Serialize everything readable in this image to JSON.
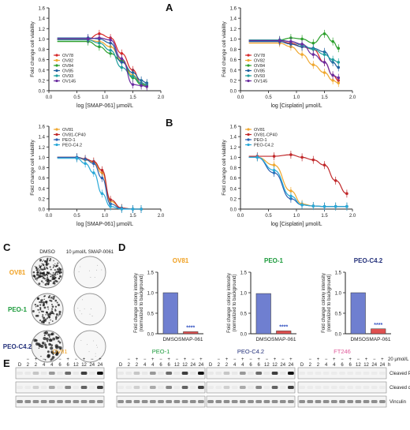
{
  "panels": {
    "A": "A",
    "B": "B",
    "C": "C",
    "D": "D",
    "E": "E"
  },
  "colors": {
    "OV78": "#d62728",
    "OV82": "#f0a830",
    "OV84": "#2ca02c",
    "OV85": "#1f5f9f",
    "OV93": "#1f9e9e",
    "OV145": "#6a2ca0",
    "OV81": "#f0a830",
    "OV81-CP40": "#c0282a",
    "PEO-1": "#2a5fb0",
    "PEO-C4.2": "#29a9d8",
    "bar": "#6f7fd0",
    "bar_small": "#e05050",
    "star": "#3050c0",
    "OV81_title": "#f0a020",
    "PEO1_title": "#1a9a3a",
    "PEOC42_title": "#23307a",
    "FT246_title": "#e05a9a"
  },
  "chart_data": [
    {
      "id": "A-left",
      "type": "line",
      "xlabel": "log [SMAP-061] μmol/L",
      "ylabel": "Fold change cell viability",
      "xlim": [
        0,
        2.0
      ],
      "ylim": [
        0,
        1.6
      ],
      "xticks": [
        "0.0",
        "0.5",
        "1.0",
        "1.5",
        "2.0"
      ],
      "yticks": [
        "0.0",
        "0.2",
        "0.4",
        "0.6",
        "0.8",
        "1.0",
        "1.2",
        "1.4",
        "1.6"
      ],
      "series": [
        {
          "name": "OV78",
          "x": [
            0.7,
            0.9,
            1.1,
            1.3,
            1.5,
            1.65,
            1.75
          ],
          "y": [
            1.0,
            1.1,
            1.02,
            0.72,
            0.4,
            0.14,
            0.12
          ]
        },
        {
          "name": "OV82",
          "x": [
            0.7,
            0.9,
            1.1,
            1.3,
            1.5,
            1.65,
            1.75
          ],
          "y": [
            0.98,
            0.95,
            0.85,
            0.6,
            0.3,
            0.15,
            0.12
          ]
        },
        {
          "name": "OV84",
          "x": [
            0.7,
            0.9,
            1.1,
            1.3,
            1.5,
            1.65,
            1.75
          ],
          "y": [
            0.95,
            0.85,
            0.72,
            0.58,
            0.25,
            0.12,
            0.1
          ]
        },
        {
          "name": "OV85",
          "x": [
            0.7,
            0.9,
            1.1,
            1.3,
            1.5,
            1.65,
            1.75
          ],
          "y": [
            1.02,
            1.0,
            0.92,
            0.55,
            0.35,
            0.2,
            0.15
          ]
        },
        {
          "name": "OV93",
          "x": [
            0.7,
            0.9,
            1.1,
            1.3,
            1.5,
            1.65,
            1.75
          ],
          "y": [
            0.98,
            0.92,
            0.78,
            0.45,
            0.28,
            0.15,
            0.12
          ]
        },
        {
          "name": "OV145",
          "x": [
            0.7,
            0.9,
            1.1,
            1.3,
            1.5,
            1.65,
            1.75
          ],
          "y": [
            1.0,
            1.02,
            0.98,
            0.62,
            0.12,
            0.1,
            0.08
          ]
        }
      ],
      "legend": "bottom-left"
    },
    {
      "id": "A-right",
      "type": "line",
      "xlabel": "log [Cisplatin] μmol/L",
      "ylabel": "Fold change cell viability",
      "xlim": [
        0,
        2.0
      ],
      "ylim": [
        0,
        1.6
      ],
      "xticks": [
        "0.0",
        "0.5",
        "1.0",
        "1.5",
        "2.0"
      ],
      "yticks": [
        "0.0",
        "0.2",
        "0.4",
        "0.6",
        "0.8",
        "1.0",
        "1.2",
        "1.4",
        "1.6"
      ],
      "series": [
        {
          "name": "OV78",
          "x": [
            0.7,
            0.9,
            1.1,
            1.3,
            1.5,
            1.65,
            1.75
          ],
          "y": [
            0.95,
            0.92,
            0.85,
            0.8,
            0.55,
            0.3,
            0.2
          ]
        },
        {
          "name": "OV82",
          "x": [
            0.7,
            0.9,
            1.1,
            1.3,
            1.5,
            1.65,
            1.75
          ],
          "y": [
            0.92,
            0.85,
            0.7,
            0.5,
            0.35,
            0.2,
            0.15
          ]
        },
        {
          "name": "OV84",
          "x": [
            0.7,
            0.9,
            1.1,
            1.3,
            1.5,
            1.65,
            1.75
          ],
          "y": [
            0.98,
            1.02,
            1.0,
            0.92,
            1.1,
            0.95,
            0.82
          ]
        },
        {
          "name": "OV85",
          "x": [
            0.7,
            0.9,
            1.1,
            1.3,
            1.5,
            1.65,
            1.75
          ],
          "y": [
            0.95,
            0.9,
            0.85,
            0.82,
            0.75,
            0.55,
            0.45
          ]
        },
        {
          "name": "OV93",
          "x": [
            0.7,
            0.9,
            1.1,
            1.3,
            1.5,
            1.65,
            1.75
          ],
          "y": [
            0.98,
            0.95,
            0.88,
            0.8,
            0.7,
            0.6,
            0.55
          ]
        },
        {
          "name": "OV145",
          "x": [
            0.7,
            0.9,
            1.1,
            1.3,
            1.5,
            1.65,
            1.75
          ],
          "y": [
            0.97,
            0.95,
            0.9,
            0.7,
            0.55,
            0.3,
            0.25
          ]
        }
      ],
      "legend": "bottom-left"
    },
    {
      "id": "B-left",
      "type": "line",
      "xlabel": "log [SMAP-061] μmol/L",
      "ylabel": "Fold change cell viability",
      "xlim": [
        0,
        2.0
      ],
      "ylim": [
        0,
        1.6
      ],
      "xticks": [
        "0.0",
        "0.5",
        "1.0",
        "1.5",
        "2.0"
      ],
      "yticks": [
        "0.0",
        "0.2",
        "0.4",
        "0.6",
        "0.8",
        "1.0",
        "1.2",
        "1.4",
        "1.6"
      ],
      "series": [
        {
          "name": "OV81",
          "x": [
            0.5,
            0.65,
            0.8,
            0.95,
            1.1,
            1.3,
            1.5,
            1.65
          ],
          "y": [
            1.0,
            0.95,
            0.9,
            0.7,
            0.15,
            0.02,
            0.0,
            0.0
          ]
        },
        {
          "name": "OV81-CP40",
          "x": [
            0.5,
            0.65,
            0.8,
            0.95,
            1.1,
            1.3,
            1.5,
            1.65
          ],
          "y": [
            1.0,
            0.97,
            0.92,
            0.75,
            0.18,
            0.02,
            0.0,
            0.0
          ]
        },
        {
          "name": "PEO-1",
          "x": [
            0.5,
            0.65,
            0.8,
            0.95,
            1.1,
            1.3,
            1.5,
            1.65
          ],
          "y": [
            1.0,
            0.96,
            0.88,
            0.6,
            0.1,
            0.01,
            0.0,
            0.0
          ]
        },
        {
          "name": "PEO-C4.2",
          "x": [
            0.5,
            0.65,
            0.8,
            0.95,
            1.1,
            1.3,
            1.5,
            1.65
          ],
          "y": [
            0.98,
            0.88,
            0.7,
            0.3,
            0.05,
            0.0,
            0.0,
            0.0
          ]
        }
      ],
      "legend": "top-left"
    },
    {
      "id": "B-right",
      "type": "line",
      "xlabel": "log [Cisplatin] μmol/L",
      "ylabel": "Fold change cell viability",
      "xlim": [
        0,
        2.0
      ],
      "ylim": [
        0,
        1.6
      ],
      "xticks": [
        "0.0",
        "0.5",
        "1.0",
        "1.5",
        "2.0"
      ],
      "yticks": [
        "0.0",
        "0.2",
        "0.4",
        "0.6",
        "0.8",
        "1.0",
        "1.2",
        "1.4",
        "1.6"
      ],
      "series": [
        {
          "name": "OV81",
          "x": [
            0.3,
            0.6,
            0.9,
            1.1,
            1.3,
            1.5,
            1.7,
            1.9
          ],
          "y": [
            1.0,
            0.85,
            0.35,
            0.1,
            0.06,
            0.05,
            0.05,
            0.05
          ]
        },
        {
          "name": "OV81-CP40",
          "x": [
            0.3,
            0.6,
            0.9,
            1.1,
            1.3,
            1.5,
            1.7,
            1.9
          ],
          "y": [
            1.02,
            1.02,
            1.05,
            1.0,
            0.95,
            0.85,
            0.55,
            0.3
          ]
        },
        {
          "name": "PEO-1",
          "x": [
            0.3,
            0.6,
            0.9,
            1.1,
            1.3,
            1.5,
            1.7,
            1.9
          ],
          "y": [
            1.0,
            0.7,
            0.2,
            0.08,
            0.06,
            0.05,
            0.05,
            0.05
          ]
        },
        {
          "name": "PEO-C4.2",
          "x": [
            0.3,
            0.6,
            0.9,
            1.1,
            1.3,
            1.5,
            1.7,
            1.9
          ],
          "y": [
            1.0,
            0.75,
            0.25,
            0.08,
            0.06,
            0.05,
            0.05,
            0.05
          ]
        }
      ],
      "legend": "top-left"
    },
    {
      "id": "D-OV81",
      "type": "bar",
      "title": "OV81",
      "ylabel": "Fold change colony intensity\n(normalized to background)",
      "categories": [
        "DMSO",
        "SMAP-061"
      ],
      "values": [
        1.0,
        0.05
      ],
      "ylim": [
        0,
        1.5
      ],
      "yticks": [
        "0.0",
        "0.5",
        "1.0",
        "1.5"
      ],
      "annotation": "****"
    },
    {
      "id": "D-PEO1",
      "type": "bar",
      "title": "PEO-1",
      "ylabel": "Fold change colony intensity\n(normalized to background)",
      "categories": [
        "DMSO",
        "SMAP-061"
      ],
      "values": [
        0.98,
        0.07
      ],
      "ylim": [
        0,
        1.5
      ],
      "yticks": [
        "0.0",
        "0.5",
        "1.0",
        "1.5"
      ],
      "annotation": "****"
    },
    {
      "id": "D-PEOC42",
      "type": "bar",
      "title": "PEO-C4.2",
      "ylabel": "Fold change colony intensity\n(normalized to background)",
      "categories": [
        "DMSO",
        "SMAP-061"
      ],
      "values": [
        1.0,
        0.12
      ],
      "ylim": [
        0,
        1.5
      ],
      "yticks": [
        "0.0",
        "0.5",
        "1.0",
        "1.5"
      ],
      "annotation": "****"
    }
  ],
  "panel_c": {
    "col_dmso": "DMSO",
    "col_drug": "10 μmol/L SMAP-0061",
    "rows": [
      {
        "label": "OV81",
        "color": "#f0a020"
      },
      {
        "label": "PEO-1",
        "color": "#1a9a3a"
      },
      {
        "label": "PEO-C4.2",
        "color": "#23307a"
      }
    ]
  },
  "panel_e": {
    "groups": [
      {
        "title": "OV81",
        "color": "#f0a020"
      },
      {
        "title": "PEO-1",
        "color": "#1a9a3a"
      },
      {
        "title": "PEO-C4.2",
        "color": "#23307a"
      },
      {
        "title": "FT246",
        "color": "#e05a9a"
      }
    ],
    "sign_row": [
      "−",
      "+",
      "−",
      "+",
      "−",
      "+",
      "−",
      "+",
      "−",
      "+"
    ],
    "time_row": [
      "D",
      "2",
      "2",
      "4",
      "4",
      "6",
      "6",
      "12",
      "12",
      "24",
      "24"
    ],
    "time_short": [
      "D",
      "2",
      "4",
      "6",
      "12",
      "24"
    ],
    "sign_label": "20 μmol/L SMAP-0061",
    "time_unit": "h",
    "blots": [
      "Cleaved Parp",
      "Cleaved caspase 3",
      "Vinculin"
    ]
  }
}
